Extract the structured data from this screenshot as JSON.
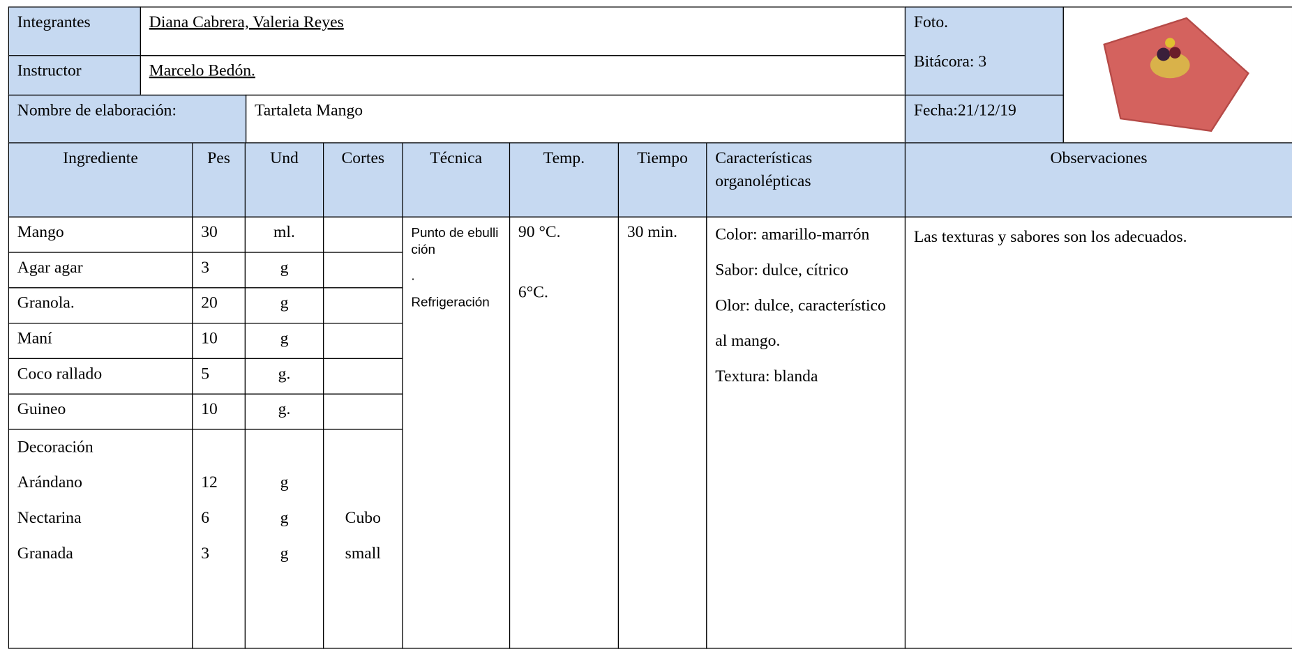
{
  "header": {
    "integrantes_label": "Integrantes",
    "integrantes": "Diana Cabrera, Valeria Reyes",
    "instructor_label": "Instructor",
    "instructor": "Marcelo Bedón.",
    "nombre_label": "Nombre de elaboración:",
    "nombre": "Tartaleta Mango",
    "foto": "Foto.",
    "bitacora": "Bitácora: 3",
    "fecha": "Fecha:21/12/19"
  },
  "table": {
    "columns": [
      "Ingrediente",
      "Pes",
      "Und",
      "Cortes",
      "Técnica",
      "Temp.",
      "Tiempo",
      "Características organolépticas",
      "Observaciones"
    ],
    "rows": [
      [
        "Mango",
        30,
        "ml."
      ],
      [
        "Agar agar",
        3,
        "g"
      ],
      [
        "Granola.",
        20,
        "g"
      ],
      [
        "Maní",
        10,
        "g"
      ],
      [
        "Coco rallado",
        5,
        "g."
      ],
      [
        "Guineo",
        10,
        "g."
      ]
    ],
    "decoracion": {
      "title": "Decoración",
      "items": [
        [
          "Arándano",
          12,
          "g"
        ],
        [
          "Nectarina",
          6,
          "g",
          "Cubo"
        ],
        [
          "Granada",
          3,
          "g",
          "small"
        ]
      ]
    },
    "tecnica": [
      "Punto de ebullición",
      ".",
      "Refrigeración"
    ],
    "temp": [
      "90 °C.",
      "6°C."
    ],
    "tiempo": "30 min.",
    "caracteristicas": [
      "Color: amarillo-marrón",
      "Sabor: dulce, cítrico",
      "Olor: dulce, característico al mango.",
      "Textura: blanda"
    ],
    "observaciones": "Las texturas y sabores son los adecuados."
  }
}
